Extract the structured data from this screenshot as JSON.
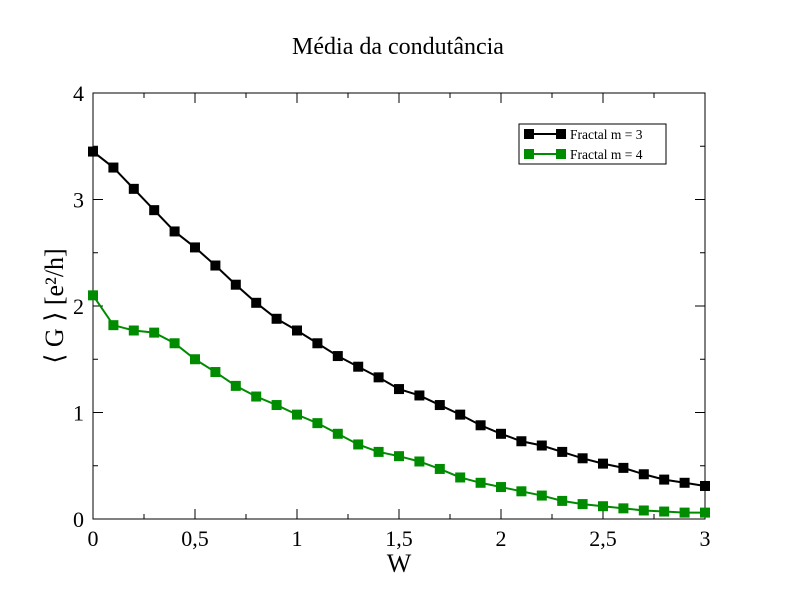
{
  "chart_data": {
    "type": "line",
    "title": "Média da condutância",
    "xlabel": "W",
    "ylabel": "⟨ G ⟩ [e²/h]",
    "xlim": [
      0,
      3
    ],
    "ylim": [
      0,
      4
    ],
    "x_ticks": [
      {
        "value": 0,
        "label": "0"
      },
      {
        "value": 0.5,
        "label": "0,5"
      },
      {
        "value": 1,
        "label": "1"
      },
      {
        "value": 1.5,
        "label": "1,5"
      },
      {
        "value": 2,
        "label": "2"
      },
      {
        "value": 2.5,
        "label": "2,5"
      },
      {
        "value": 3,
        "label": "3"
      }
    ],
    "y_ticks": [
      {
        "value": 0,
        "label": "0"
      },
      {
        "value": 1,
        "label": "1"
      },
      {
        "value": 2,
        "label": "2"
      },
      {
        "value": 3,
        "label": "3"
      },
      {
        "value": 4,
        "label": "4"
      }
    ],
    "grid": false,
    "legend_position": "top-right",
    "x": [
      0,
      0.1,
      0.2,
      0.3,
      0.4,
      0.5,
      0.6,
      0.7,
      0.8,
      0.9,
      1.0,
      1.1,
      1.2,
      1.3,
      1.4,
      1.5,
      1.6,
      1.7,
      1.8,
      1.9,
      2.0,
      2.1,
      2.2,
      2.3,
      2.4,
      2.5,
      2.6,
      2.7,
      2.8,
      2.9,
      3.0
    ],
    "series": [
      {
        "name": "Fractal m = 3",
        "color": "#000000",
        "marker": "square",
        "values": [
          3.45,
          3.3,
          3.1,
          2.9,
          2.7,
          2.55,
          2.38,
          2.2,
          2.03,
          1.88,
          1.77,
          1.65,
          1.53,
          1.43,
          1.33,
          1.22,
          1.16,
          1.07,
          0.98,
          0.88,
          0.8,
          0.73,
          0.69,
          0.63,
          0.57,
          0.52,
          0.48,
          0.42,
          0.37,
          0.34,
          0.31
        ]
      },
      {
        "name": "Fractal m = 4",
        "color": "#008c00",
        "marker": "square",
        "values": [
          2.1,
          1.82,
          1.77,
          1.75,
          1.65,
          1.5,
          1.38,
          1.25,
          1.15,
          1.07,
          0.98,
          0.9,
          0.8,
          0.7,
          0.63,
          0.59,
          0.54,
          0.47,
          0.39,
          0.34,
          0.3,
          0.26,
          0.22,
          0.17,
          0.14,
          0.12,
          0.1,
          0.08,
          0.07,
          0.06,
          0.06
        ]
      }
    ]
  }
}
